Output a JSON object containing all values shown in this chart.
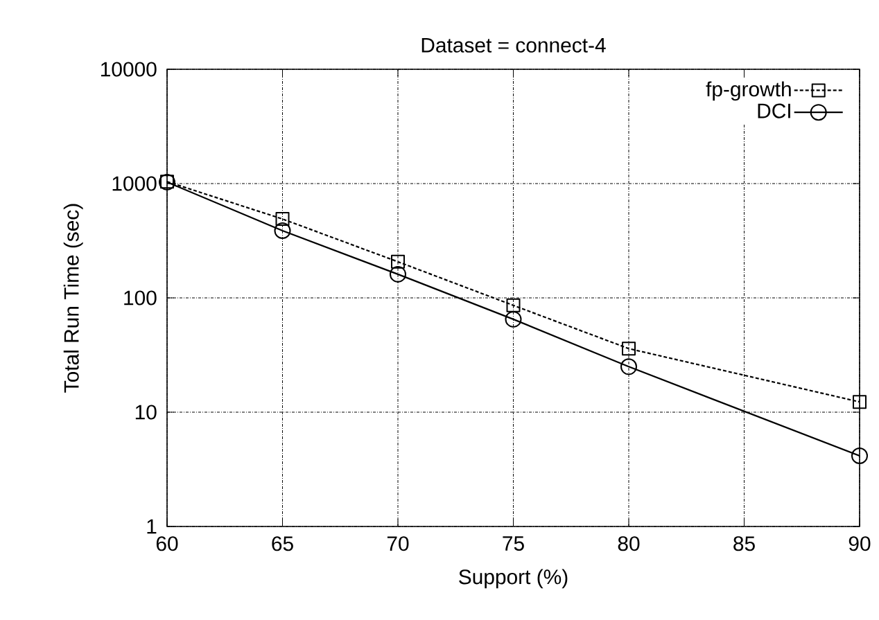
{
  "chart_data": {
    "type": "line",
    "title": "Dataset = connect-4",
    "xlabel": "Support (%)",
    "ylabel": "Total Run Time (sec)",
    "x": [
      60,
      65,
      70,
      75,
      80,
      90
    ],
    "series": [
      {
        "name": "fp-growth",
        "color": "#000000",
        "marker": "square",
        "line_style": "dashed",
        "values": [
          1040,
          490,
          207,
          86,
          36,
          12.3
        ]
      },
      {
        "name": "DCI",
        "color": "#000000",
        "marker": "circle",
        "line_style": "solid",
        "values": [
          1030,
          387,
          161,
          65,
          25,
          4.15
        ]
      }
    ],
    "xlim": [
      60,
      90
    ],
    "xticks": [
      60,
      65,
      70,
      75,
      80,
      85,
      90
    ],
    "ylim": [
      1,
      10000
    ],
    "yticks": [
      1,
      10,
      100,
      1000,
      10000
    ],
    "log": "y",
    "grid": true,
    "legend": "top right"
  }
}
